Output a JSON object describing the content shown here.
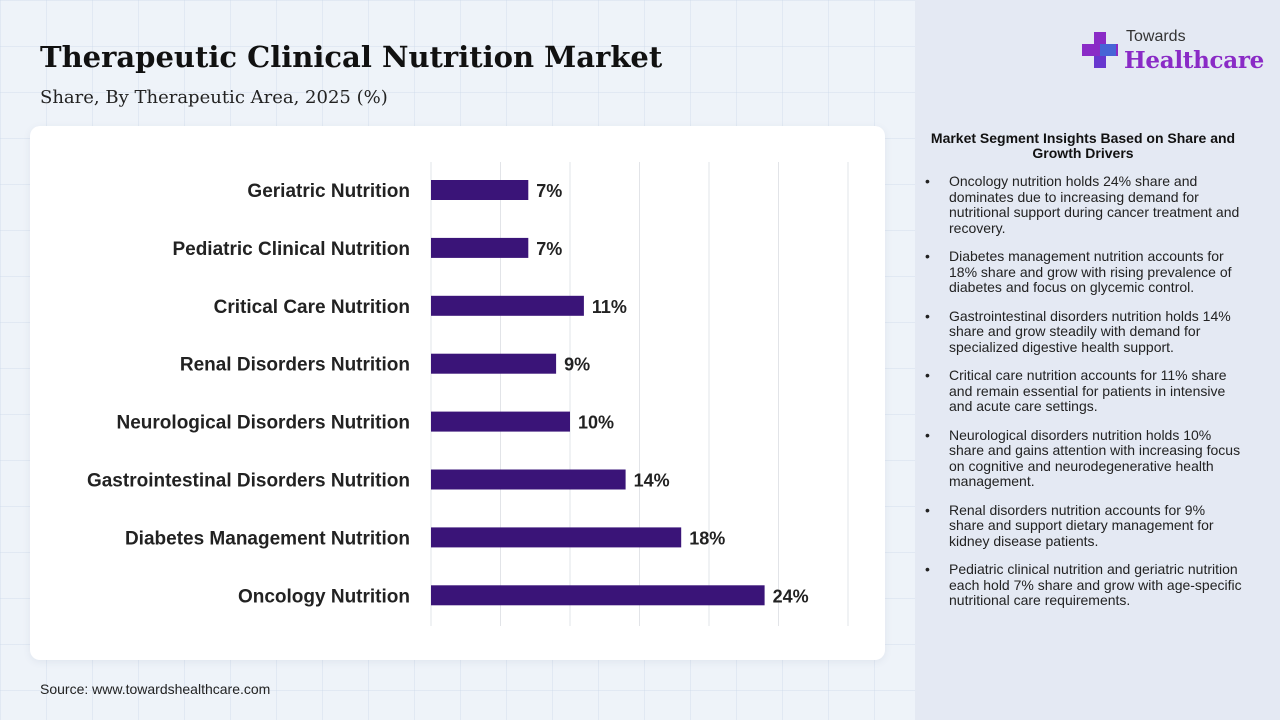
{
  "header": {
    "title": "Therapeutic Clinical Nutrition Market",
    "subtitle": "Share, By Therapeutic Area, 2025 (%)"
  },
  "logo": {
    "top_text": "Towards",
    "main_text": "Healthcare",
    "icon": "plus-cross-icon"
  },
  "source": "Source: www.towardshealthcare.com",
  "colors": {
    "bar": "#3a1478",
    "logo_purple": "#8a2bc6",
    "logo_blue": "#3b6fd8"
  },
  "chart_data": {
    "type": "bar",
    "orientation": "horizontal",
    "title": "Therapeutic Clinical Nutrition Market",
    "subtitle": "Share, By Therapeutic Area, 2025 (%)",
    "categories": [
      "Geriatric Nutrition",
      "Pediatric Clinical Nutrition",
      "Critical Care Nutrition",
      "Renal Disorders Nutrition",
      "Neurological Disorders Nutrition",
      "Gastrointestinal Disorders Nutrition",
      "Diabetes Management Nutrition",
      "Oncology Nutrition"
    ],
    "values": [
      7,
      7,
      11,
      9,
      10,
      14,
      18,
      24
    ],
    "value_labels": [
      "7%",
      "7%",
      "11%",
      "9%",
      "10%",
      "14%",
      "18%",
      "24%"
    ],
    "xlim": [
      0,
      30
    ],
    "grid": true,
    "legend": "none"
  },
  "insights": {
    "heading": "Market Segment Insights Based on Share and Growth Drivers",
    "bullet": "•",
    "items": [
      "Oncology nutrition holds 24% share and dominates due to increasing demand for nutritional support during cancer treatment and recovery.",
      "Diabetes management nutrition accounts for 18% share and grow with rising prevalence of diabetes and focus on glycemic control.",
      "Gastrointestinal disorders nutrition holds 14% share and grow steadily with demand for specialized digestive health support.",
      "Critical care nutrition accounts for 11% share and remain essential for patients in intensive and acute care settings.",
      "Neurological disorders nutrition holds 10% share and gains attention with increasing focus on cognitive and neurodegenerative health management.",
      "Renal disorders nutrition accounts for 9% share and support dietary management for kidney disease patients.",
      "Pediatric clinical nutrition and geriatric nutrition each hold 7% share and grow with age-specific nutritional care requirements."
    ]
  }
}
